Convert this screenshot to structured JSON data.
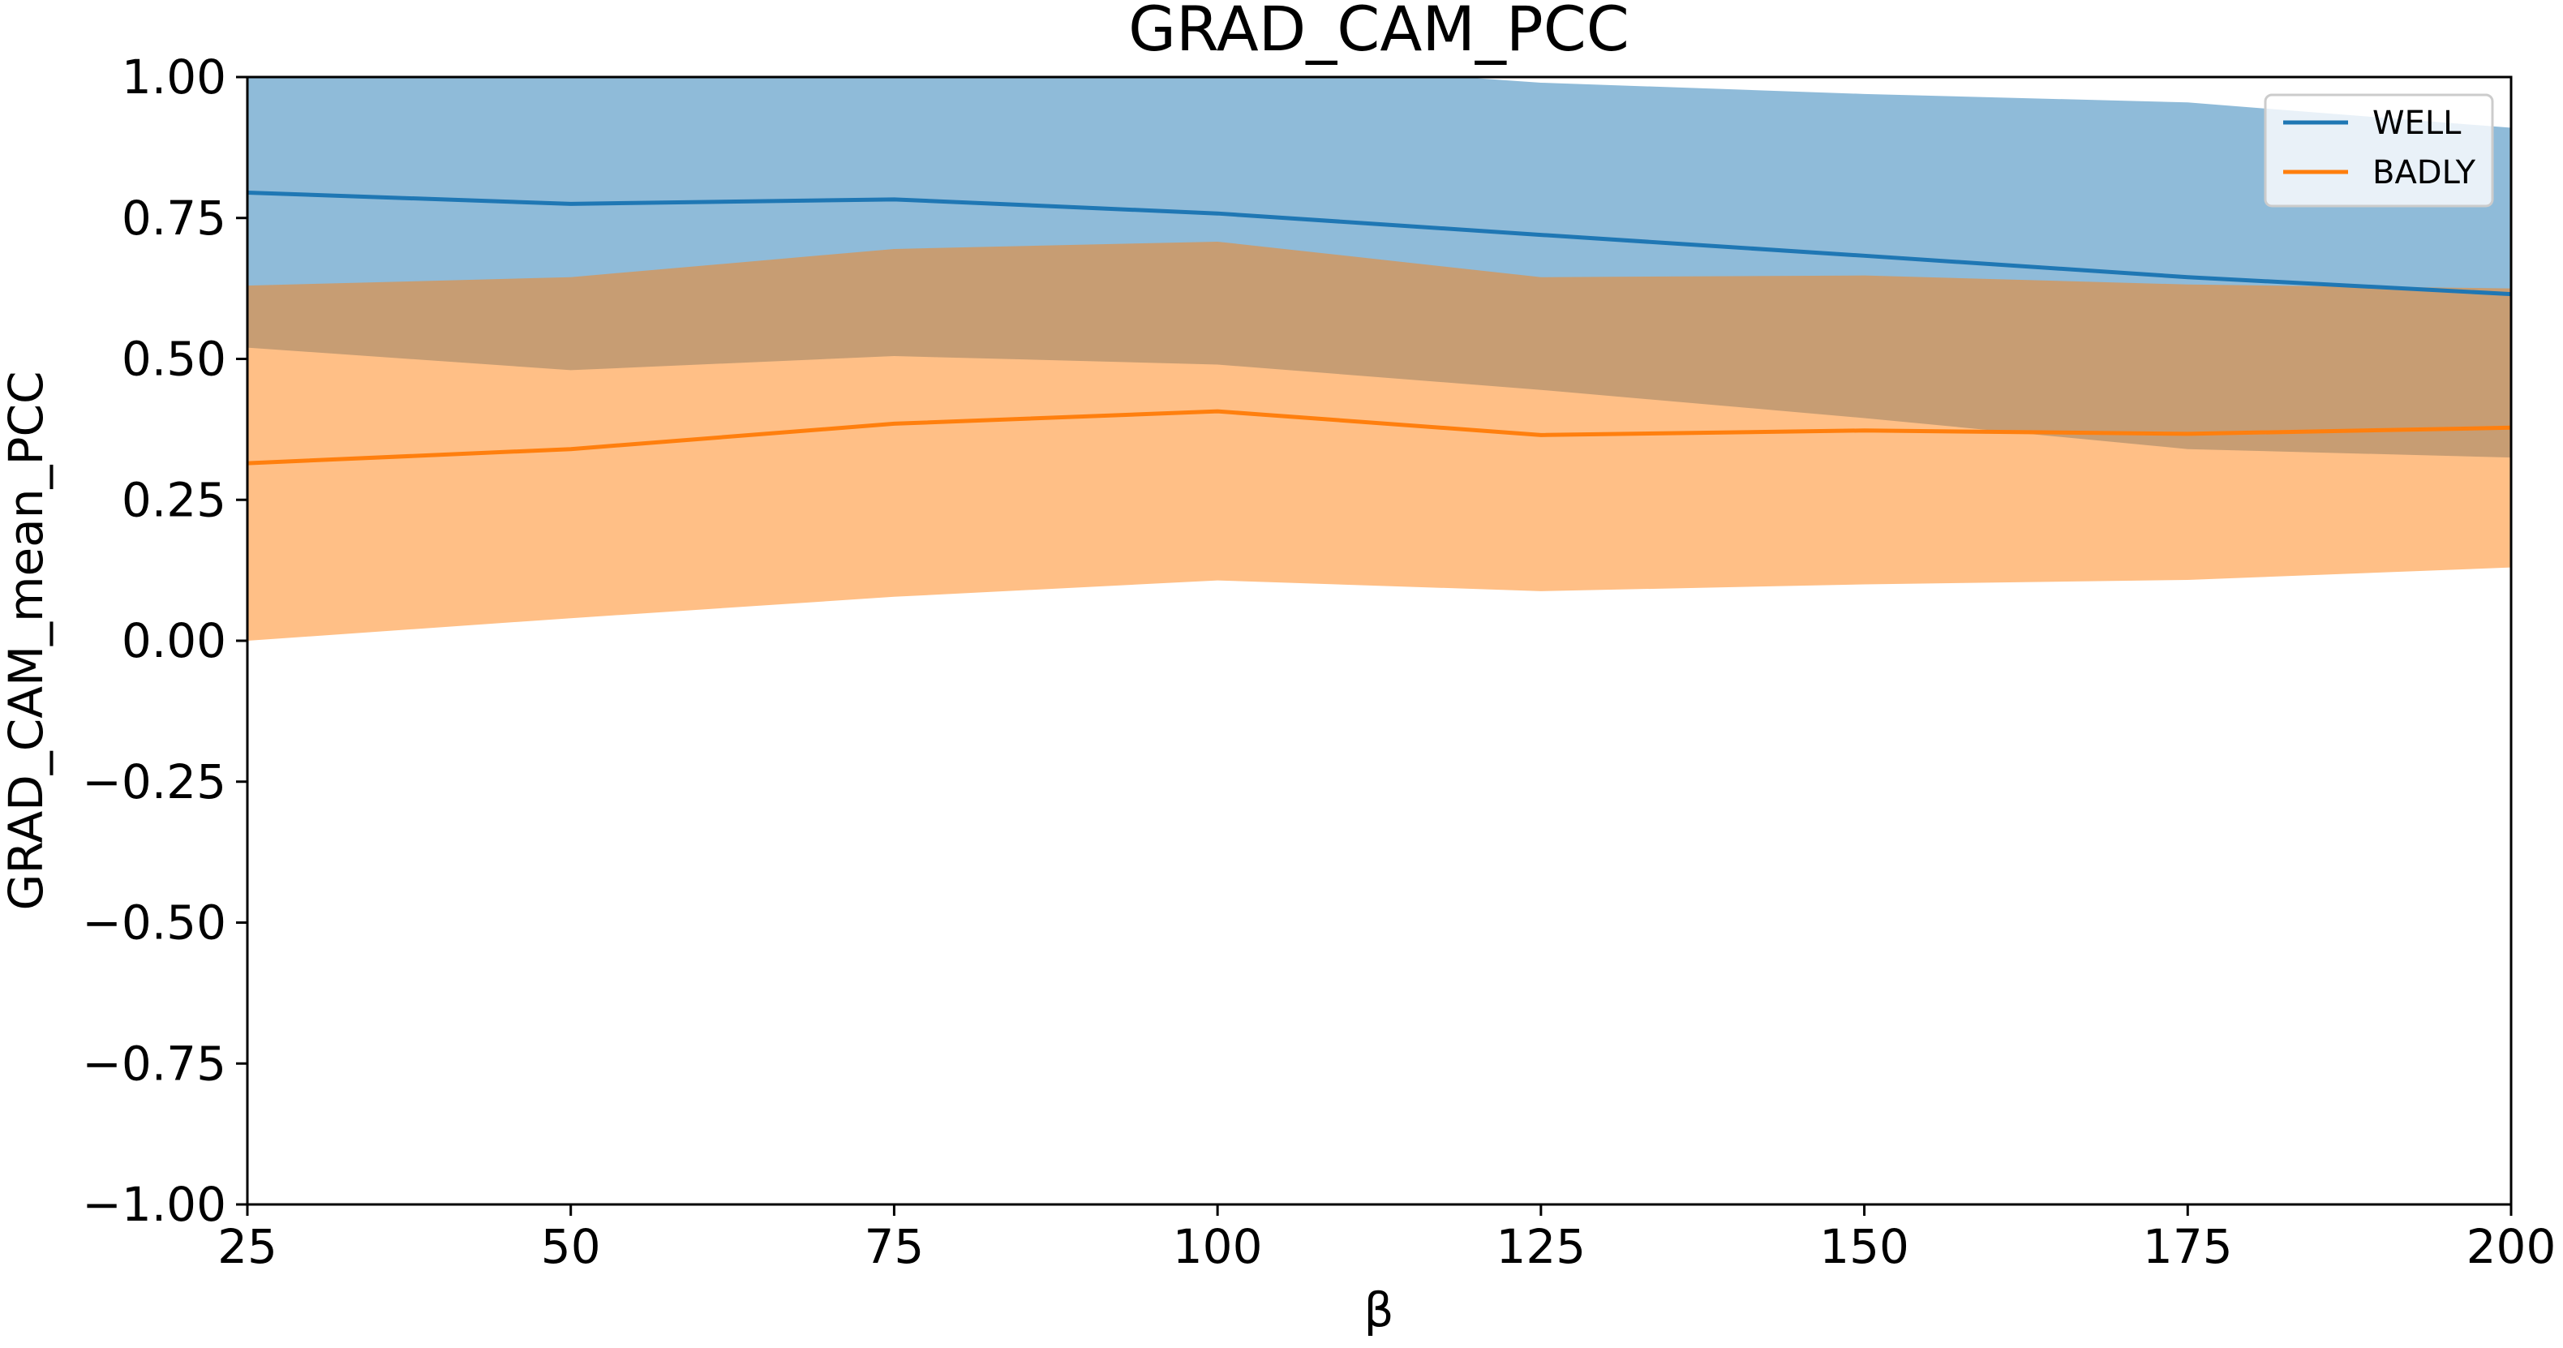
{
  "chart_data": {
    "type": "line",
    "title": "GRAD_CAM_PCC",
    "xlabel": "β",
    "ylabel": "GRAD_CAM_mean_PCC",
    "x": [
      25,
      50,
      75,
      100,
      125,
      150,
      175,
      200
    ],
    "xlim": [
      25,
      200
    ],
    "ylim": [
      -1.0,
      1.0
    ],
    "xticks": [
      25,
      50,
      75,
      100,
      125,
      150,
      175,
      200
    ],
    "xtick_labels": [
      "25",
      "50",
      "75",
      "100",
      "125",
      "150",
      "175",
      "200"
    ],
    "yticks": [
      1.0,
      0.75,
      0.5,
      0.25,
      0.0,
      -0.25,
      -0.5,
      -0.75,
      -1.0
    ],
    "ytick_labels": [
      "1.00",
      "0.75",
      "0.50",
      "0.25",
      "0.00",
      "−0.25",
      "−0.50",
      "−0.75",
      "−1.00"
    ],
    "grid": false,
    "legend_position": "top-right",
    "series": [
      {
        "name": "WELL",
        "color": "#1f77b4",
        "band_color": "#1f77b4",
        "values": [
          0.795,
          0.775,
          0.783,
          0.758,
          0.72,
          0.683,
          0.645,
          0.615
        ],
        "upper": [
          1.03,
          1.03,
          1.03,
          1.03,
          0.99,
          0.97,
          0.955,
          0.91
        ],
        "lower": [
          0.52,
          0.48,
          0.505,
          0.49,
          0.445,
          0.395,
          0.34,
          0.325
        ]
      },
      {
        "name": "BADLY",
        "color": "#ff7f0e",
        "band_color": "#ff7f0e",
        "values": [
          0.315,
          0.34,
          0.385,
          0.407,
          0.365,
          0.373,
          0.367,
          0.378
        ],
        "upper": [
          0.63,
          0.645,
          0.695,
          0.708,
          0.645,
          0.648,
          0.632,
          0.625
        ],
        "lower": [
          0.0,
          0.04,
          0.078,
          0.107,
          0.088,
          0.1,
          0.108,
          0.13
        ]
      }
    ]
  }
}
